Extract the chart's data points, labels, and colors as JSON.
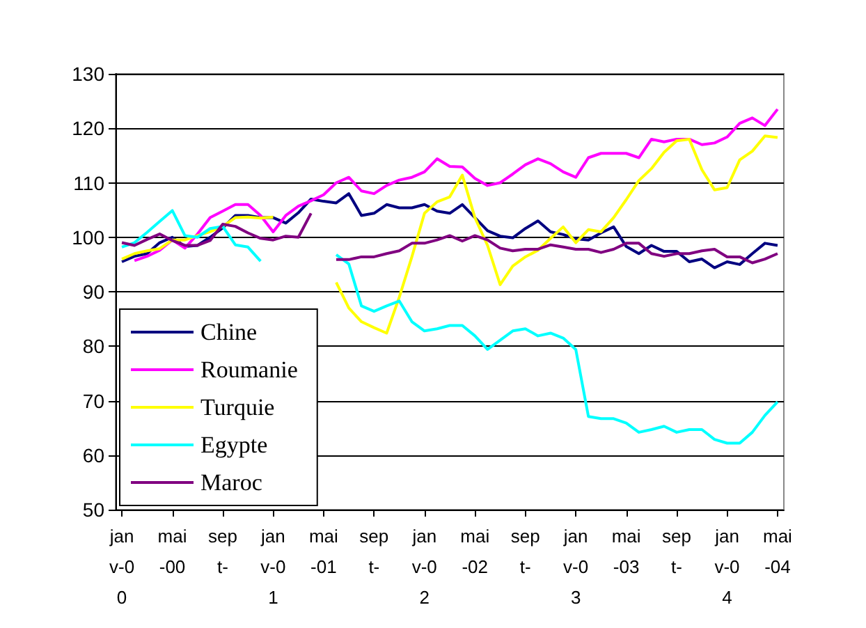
{
  "chart_data": {
    "type": "line",
    "categories": [
      "janv-00",
      null,
      null,
      null,
      "mai-00",
      null,
      null,
      null,
      "sept-",
      null,
      null,
      null,
      "janv-01",
      null,
      null,
      null,
      "mai-01",
      null,
      null,
      null,
      "sept-",
      null,
      null,
      null,
      "janv-02",
      null,
      null,
      null,
      "mai-02",
      null,
      null,
      null,
      "sept-",
      null,
      null,
      null,
      "janv-03",
      null,
      null,
      null,
      "mai-03",
      null,
      null,
      null,
      "sept-",
      null,
      null,
      null,
      "janv-04",
      null,
      null,
      null,
      "mai-04"
    ],
    "series": [
      {
        "name": "Chine",
        "color": "#000080",
        "values": [
          95.5,
          96.5,
          97,
          99,
          100,
          98.3,
          98.5,
          100,
          101.7,
          104,
          104,
          103.6,
          103.6,
          102.6,
          104.5,
          107,
          106.6,
          106.3,
          108,
          104,
          104.4,
          106,
          105.4,
          105.4,
          106,
          104.8,
          104.4,
          106,
          103.6,
          101.2,
          100.2,
          99.9,
          101.6,
          103,
          101,
          100.5,
          99.7,
          99.5,
          100.8,
          101.9,
          98.3,
          97,
          98.5,
          97.4,
          97.4,
          95.5,
          96,
          94.4,
          95.5,
          95,
          97,
          98.9,
          98.5
        ]
      },
      {
        "name": "Roumanie",
        "color": "#ff00ff",
        "values": [
          null,
          95.7,
          96.5,
          97.6,
          99.5,
          98,
          100.6,
          103.6,
          104.8,
          106,
          106,
          104,
          101,
          104,
          105.7,
          106.7,
          107.8,
          110,
          111,
          108.5,
          108,
          109.5,
          110.5,
          111,
          112,
          114.4,
          113,
          112.9,
          110.8,
          109.5,
          110,
          111.6,
          113.3,
          114.4,
          113.5,
          112,
          111,
          114.6,
          115.4,
          115.4,
          115.4,
          114.6,
          118,
          117.5,
          118,
          118,
          117,
          117.3,
          118.4,
          120.9,
          121.9,
          120.5,
          123.5
        ]
      },
      {
        "name": "Turquie",
        "color": "#ffff00",
        "values": [
          96,
          97,
          97.5,
          97.9,
          99.5,
          99.5,
          100.3,
          101,
          102,
          103.6,
          103.7,
          103.5,
          103.7,
          null,
          null,
          null,
          null,
          91.7,
          87,
          84.5,
          83.4,
          82.4,
          89,
          96.4,
          104.4,
          106.5,
          107.4,
          111.4,
          103.6,
          98.5,
          91.3,
          94.7,
          96.4,
          97.6,
          99.8,
          101.9,
          99,
          101.4,
          101,
          103.6,
          106.9,
          110.4,
          112.6,
          115.6,
          117.7,
          118,
          112.4,
          108.7,
          109.1,
          114.2,
          115.8,
          118.6,
          118.3
        ]
      },
      {
        "name": "Egypte",
        "color": "#00ffff",
        "values": [
          98.2,
          99,
          100.9,
          102.9,
          104.9,
          100.3,
          100,
          101.6,
          102,
          98.6,
          98.2,
          95.6,
          null,
          null,
          null,
          null,
          null,
          96.8,
          95.1,
          87.4,
          86.4,
          87.4,
          88.3,
          84.5,
          82.8,
          83.2,
          83.8,
          83.8,
          81.9,
          79.4,
          81.1,
          82.8,
          83.2,
          81.9,
          82.4,
          81.5,
          79.4,
          67.1,
          66.7,
          66.7,
          65.9,
          64.2,
          64.7,
          65.3,
          64.2,
          64.7,
          64.7,
          62.9,
          62.2,
          62.2,
          64.2,
          67.3,
          69.8
        ]
      },
      {
        "name": "Maroc",
        "color": "#800080",
        "values": [
          99,
          98.5,
          99.6,
          100.6,
          99.4,
          98.5,
          98.5,
          99.4,
          102.4,
          102,
          100.8,
          99.8,
          99.5,
          100.2,
          100,
          104.4,
          null,
          95.9,
          95.9,
          96.4,
          96.4,
          97,
          97.5,
          98.9,
          98.9,
          99.5,
          100.3,
          99.3,
          100.3,
          99.5,
          98,
          97.5,
          97.8,
          97.8,
          98.6,
          98.2,
          97.8,
          97.8,
          97.2,
          97.8,
          98.9,
          98.9,
          97,
          96.5,
          97,
          97,
          97.5,
          97.8,
          96.4,
          96.4,
          95.3,
          96,
          97
        ]
      }
    ],
    "ylim": [
      50,
      130
    ],
    "yticks": [
      50,
      60,
      70,
      80,
      90,
      100,
      110,
      120,
      130
    ],
    "grid": "y",
    "legend": "bottom left",
    "marker": "none",
    "line_style": "solid"
  }
}
